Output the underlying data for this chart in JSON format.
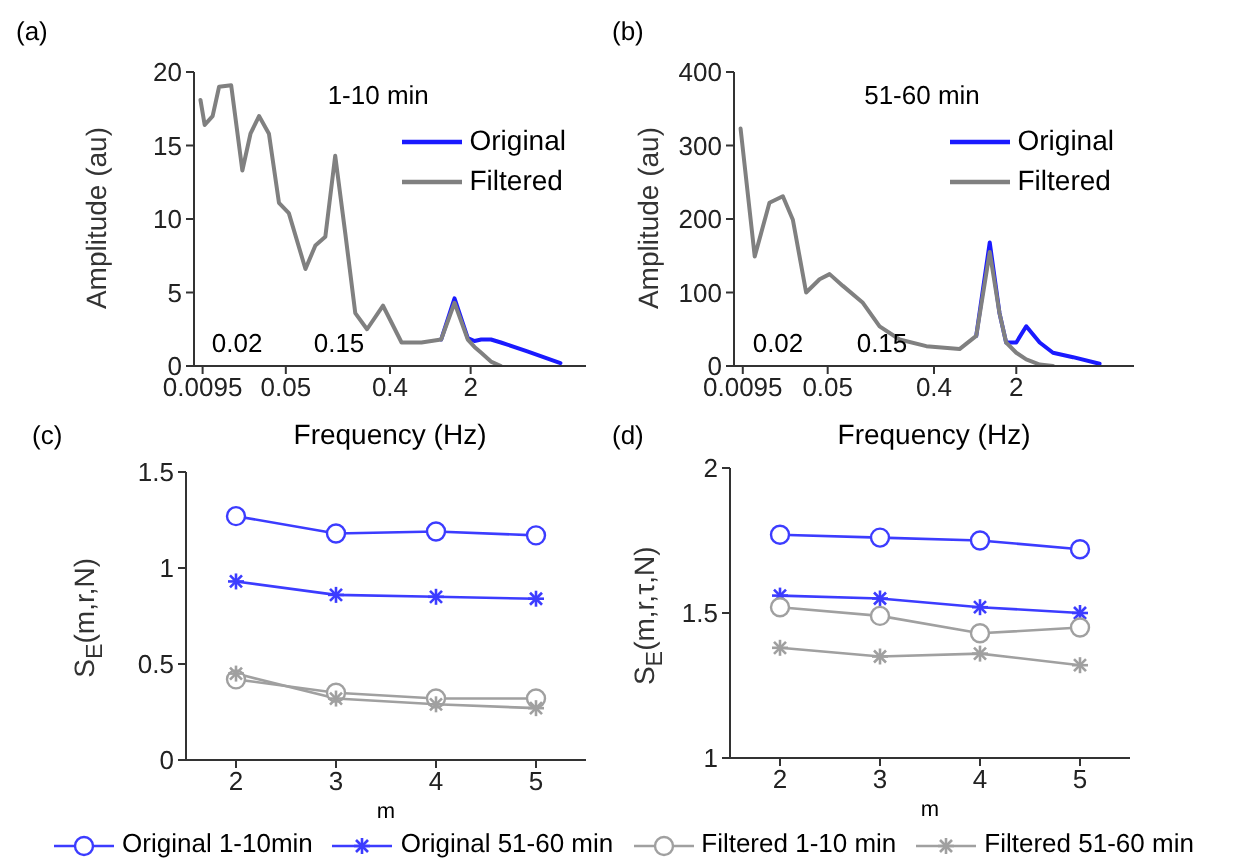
{
  "chart_data": [
    {
      "type": "line",
      "title": "(a)",
      "xlabel": "Frequency (Hz)",
      "ylabel": "Amplitude (au)",
      "log": "x",
      "legend": "top right",
      "annotations": [
        "1-10 min",
        "0.02",
        "0.15"
      ],
      "x": [
        0.0091,
        0.0099,
        0.0116,
        0.0132,
        0.0168,
        0.021,
        0.0247,
        0.0293,
        0.0357,
        0.0436,
        0.0531,
        0.074,
        0.0902,
        0.11,
        0.134,
        0.164,
        0.2,
        0.253,
        0.348,
        0.504,
        0.75,
        1.11,
        1.45,
        1.89,
        2.16,
        2.47,
        3.0,
        3.66,
        6.2,
        12
      ],
      "xlim": [
        0.008,
        20
      ],
      "xticks": [
        0.0095,
        0.05,
        0.4,
        2
      ],
      "ylim": [
        0,
        20
      ],
      "yticks": [
        0,
        5,
        10,
        15,
        20
      ],
      "series": [
        {
          "name": "Original",
          "color": "#1a1aff",
          "values": [
            null,
            null,
            null,
            null,
            null,
            null,
            null,
            null,
            null,
            null,
            null,
            null,
            null,
            null,
            null,
            null,
            null,
            null,
            null,
            null,
            null,
            1.8,
            4.6,
            1.9,
            1.7,
            1.8,
            1.8,
            1.6,
            1.0,
            0.2
          ]
        },
        {
          "name": "Filtered",
          "color": "#808080",
          "values": [
            18.1,
            16.4,
            17.0,
            19.0,
            19.1,
            13.3,
            15.8,
            17.0,
            15.8,
            11.1,
            10.4,
            6.6,
            8.2,
            8.8,
            14.3,
            9.0,
            3.6,
            2.5,
            4.1,
            1.6,
            1.6,
            1.8,
            4.3,
            1.8,
            1.3,
            0.9,
            0.3,
            0,
            null,
            null
          ]
        }
      ]
    },
    {
      "type": "line",
      "title": "(b)",
      "xlabel": "Frequency (Hz)",
      "ylabel": "Amplitude (au)",
      "log": "x",
      "legend": "top right",
      "annotations": [
        "51-60 min",
        "0.02",
        "0.15"
      ],
      "x": [
        0.0091,
        0.012,
        0.016,
        0.0208,
        0.0253,
        0.0328,
        0.0427,
        0.0519,
        0.0673,
        0.0995,
        0.138,
        0.204,
        0.344,
        0.659,
        0.914,
        1.19,
        1.44,
        1.64,
        2.0,
        2.43,
        3.16,
        4.1,
        6.07,
        10.2
      ],
      "xlim": [
        0.008,
        20
      ],
      "xticks": [
        0.0095,
        0.05,
        0.4,
        2
      ],
      "ylim": [
        0,
        400
      ],
      "yticks": [
        0,
        100,
        200,
        300,
        400
      ],
      "series": [
        {
          "name": "Original",
          "color": "#1a1aff",
          "values": [
            null,
            null,
            null,
            null,
            null,
            null,
            null,
            null,
            null,
            null,
            null,
            null,
            null,
            null,
            41,
            168,
            72,
            32,
            32,
            54,
            32,
            18,
            12,
            3
          ]
        },
        {
          "name": "Filtered",
          "color": "#808080",
          "values": [
            323,
            149,
            222,
            231,
            199,
            100,
            118,
            125,
            109,
            86,
            54,
            36,
            27,
            23,
            41,
            155,
            72,
            32,
            18,
            9,
            2,
            0,
            null,
            null
          ]
        }
      ]
    },
    {
      "type": "line",
      "title": "(c)",
      "xlabel": "m",
      "ylabel": "S$_{E}$(m,r,N)",
      "legend": "bottom",
      "x": [
        2,
        3,
        4,
        5
      ],
      "xlim": [
        1.5,
        5.5
      ],
      "xticks": [
        2,
        3,
        4,
        5
      ],
      "ylim": [
        0,
        1.5
      ],
      "yticks": [
        0,
        0.5,
        1,
        1.5
      ],
      "series": [
        {
          "name": "Original 1-10min",
          "color": "#3c3cff",
          "marker": "circle",
          "values": [
            1.27,
            1.18,
            1.19,
            1.17
          ]
        },
        {
          "name": "Original 51-60 min",
          "color": "#3c3cff",
          "marker": "cross",
          "values": [
            0.93,
            0.86,
            0.85,
            0.84
          ]
        },
        {
          "name": "Filtered 1-10 min",
          "color": "#a0a0a0",
          "marker": "circle",
          "values": [
            0.42,
            0.35,
            0.32,
            0.32
          ]
        },
        {
          "name": "Filtered 51-60 min",
          "color": "#a0a0a0",
          "marker": "cross",
          "values": [
            0.45,
            0.32,
            0.29,
            0.27
          ]
        }
      ]
    },
    {
      "type": "line",
      "title": "(d)",
      "xlabel": "m",
      "ylabel": "S$_{E}$(m,r,τ,N)",
      "x": [
        2,
        3,
        4,
        5
      ],
      "xlim": [
        1.5,
        5.5
      ],
      "xticks": [
        2,
        3,
        4,
        5
      ],
      "ylim": [
        1,
        2
      ],
      "yticks": [
        1,
        1.5,
        2
      ],
      "series": [
        {
          "color": "#3c3cff",
          "marker": "circle",
          "values": [
            1.77,
            1.76,
            1.75,
            1.72
          ]
        },
        {
          "color": "#3c3cff",
          "marker": "cross",
          "values": [
            1.56,
            1.55,
            1.52,
            1.5
          ]
        },
        {
          "color": "#a0a0a0",
          "marker": "circle",
          "values": [
            1.52,
            1.49,
            1.43,
            1.45
          ]
        },
        {
          "color": "#a0a0a0",
          "marker": "cross",
          "values": [
            1.38,
            1.35,
            1.36,
            1.32
          ]
        }
      ]
    }
  ]
}
